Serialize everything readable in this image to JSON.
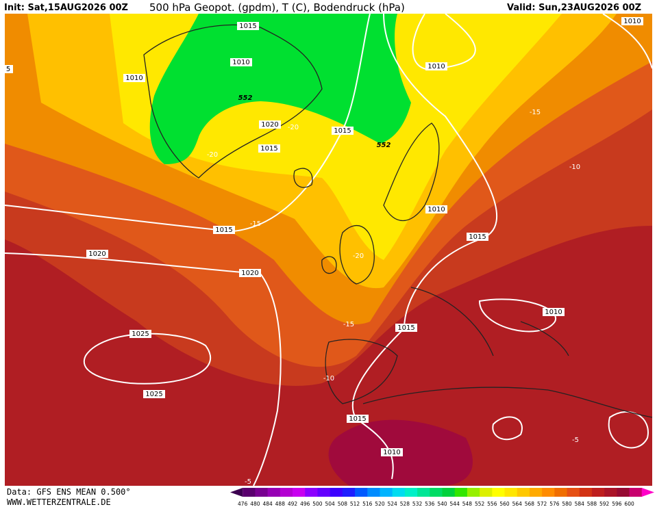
{
  "header": {
    "init": "Init: Sat,15AUG2026 00Z",
    "title": "500 hPa Geopot. (gpdm), T (C), Bodendruck (hPa)",
    "valid": "Valid: Sun,23AUG2026 00Z"
  },
  "map": {
    "labels": [
      1015,
      1010,
      1010,
      552,
      1020,
      -20,
      1015,
      1015,
      552,
      -20,
      1010,
      1010,
      -15,
      -10,
      1010,
      1015,
      -15,
      1015,
      1020,
      -20,
      1020,
      1010,
      -15,
      1015,
      1025,
      -10,
      1025,
      1015,
      1010,
      -5,
      5,
      -5
    ]
  },
  "footer": {
    "data": "Data: GFS ENS MEAN 0.500°",
    "site": "WWW.WETTERZENTRALE.DE"
  },
  "colorbar": {
    "ticks": [
      476,
      480,
      484,
      488,
      492,
      496,
      500,
      504,
      508,
      512,
      516,
      520,
      524,
      528,
      532,
      536,
      540,
      544,
      548,
      552,
      556,
      560,
      564,
      568,
      572,
      576,
      580,
      584,
      588,
      592,
      596,
      600
    ],
    "colors": [
      "#3c0050",
      "#5a006e",
      "#780090",
      "#9600b4",
      "#b400d2",
      "#c800f0",
      "#8c00ff",
      "#6400ff",
      "#3c00ff",
      "#1e1eff",
      "#005aff",
      "#008cff",
      "#00b4ff",
      "#00dcf0",
      "#00f0c8",
      "#00e696",
      "#00dc64",
      "#00d23c",
      "#32e600",
      "#96f000",
      "#dcf000",
      "#ffff00",
      "#ffe600",
      "#ffc800",
      "#ffaa00",
      "#ff8c00",
      "#f06e00",
      "#e65014",
      "#d23214",
      "#be1e1e",
      "#aa1428",
      "#960a32",
      "#c8006e",
      "#ff00c8"
    ]
  }
}
